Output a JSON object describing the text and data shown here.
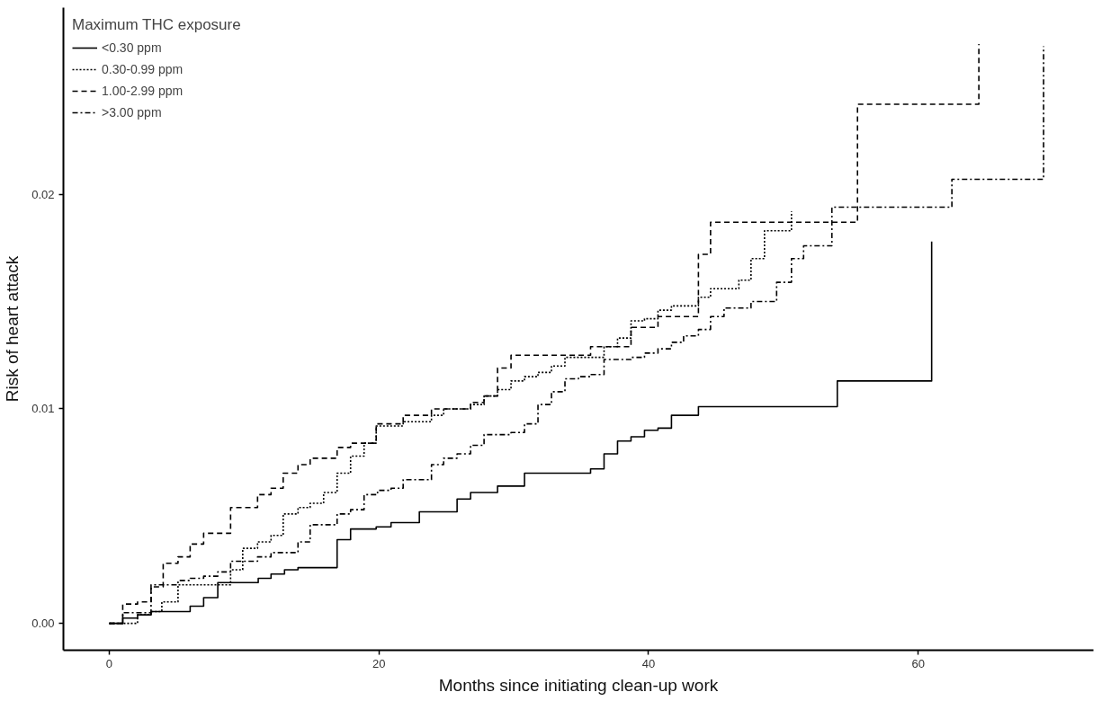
{
  "chart_data": {
    "type": "step",
    "xlabel": "Months since initiating clean-up work",
    "ylabel": "Risk of heart attack",
    "legend_title": "Maximum THC exposure",
    "legend": "top left",
    "grid": false,
    "xlim": [
      -3.4,
      73
    ],
    "ylim": [
      -0.00125,
      0.0287
    ],
    "xticks": [
      0,
      20,
      40,
      60
    ],
    "yticks": [
      {
        "value": 0,
        "label": "0.00"
      },
      {
        "value": 0.01,
        "label": "0.01"
      },
      {
        "value": 0.02,
        "label": "0.02"
      }
    ],
    "series": [
      {
        "name": "<0.30 ppm",
        "color": "#000000",
        "line_style": "solid",
        "x": [
          0,
          1,
          2.1,
          3.1,
          6,
          7,
          8.05,
          11.05,
          12,
          13,
          14,
          16.9,
          17.9,
          19.8,
          20.9,
          23,
          25.8,
          26.8,
          28.8,
          30.8,
          35.7,
          36.7,
          37.7,
          38.7,
          39.7,
          40.7,
          41.7,
          43.7,
          54,
          61,
          61
        ],
        "values": [
          0,
          0.00025,
          0.0004,
          0.00055,
          0.0008,
          0.0012,
          0.0019,
          0.0021,
          0.0023,
          0.0025,
          0.0026,
          0.0039,
          0.0044,
          0.0045,
          0.0047,
          0.0052,
          0.0058,
          0.0061,
          0.0064,
          0.007,
          0.0072,
          0.0079,
          0.0085,
          0.0087,
          0.009,
          0.0091,
          0.0097,
          0.0101,
          0.0113,
          0.0178,
          0.0178
        ]
      },
      {
        "name": "0.30-0.99 ppm",
        "color": "#000000",
        "line_style": "dotted",
        "x": [
          0,
          2.1,
          3.1,
          3.9,
          5.1,
          9,
          9.9,
          11,
          12,
          12.9,
          14,
          14.9,
          15.9,
          16.9,
          17.9,
          18.9,
          19.8,
          21.8,
          23.9,
          24.8,
          26.8,
          27.8,
          28.8,
          29.8,
          30.8,
          31.8,
          32.8,
          33.8,
          36.7,
          37.7,
          38.7,
          39.7,
          40.7,
          41.7,
          43.7,
          44.6,
          46.7,
          47.6,
          48.6,
          50.6,
          50.6
        ],
        "values": [
          0,
          0.0004,
          0.00055,
          0.001,
          0.0018,
          0.0025,
          0.0035,
          0.0038,
          0.0041,
          0.0051,
          0.0054,
          0.0056,
          0.0061,
          0.007,
          0.0078,
          0.0084,
          0.0092,
          0.0094,
          0.0097,
          0.01,
          0.0102,
          0.0106,
          0.0109,
          0.0113,
          0.0115,
          0.0117,
          0.012,
          0.0124,
          0.0129,
          0.0133,
          0.0141,
          0.0142,
          0.0146,
          0.0148,
          0.0152,
          0.0156,
          0.016,
          0.017,
          0.0183,
          0.0192,
          0.0192
        ]
      },
      {
        "name": "1.00-2.99 ppm",
        "color": "#000000",
        "line_style": "dashed",
        "x": [
          0,
          1,
          2.1,
          3.1,
          4,
          5.1,
          6,
          7,
          9,
          11,
          12,
          12.9,
          14,
          14.9,
          16.9,
          17.9,
          19.8,
          21.8,
          23.9,
          26.8,
          27.8,
          28.8,
          29.8,
          35.7,
          36.7,
          38.7,
          40.7,
          43.7,
          44.6,
          55.5,
          64.5,
          64.5
        ],
        "values": [
          0,
          0.0009,
          0.001,
          0.0017,
          0.0028,
          0.0031,
          0.0037,
          0.0042,
          0.0054,
          0.006,
          0.0063,
          0.007,
          0.0074,
          0.0077,
          0.0082,
          0.0084,
          0.0093,
          0.0097,
          0.01,
          0.0103,
          0.0106,
          0.0119,
          0.0125,
          0.0129,
          0.0129,
          0.0138,
          0.0143,
          0.0172,
          0.0187,
          0.0242,
          0.027,
          0.027
        ]
      },
      {
        "name": ">3.00 ppm",
        "color": "#000000",
        "line_style": "dashdot",
        "x": [
          0,
          1,
          3.1,
          5.1,
          6,
          7,
          8.05,
          9,
          11,
          12,
          14,
          14.9,
          16.9,
          17.9,
          18.9,
          19.9,
          20.9,
          21.8,
          23.9,
          24.8,
          25.8,
          26.8,
          27.8,
          29.8,
          30.8,
          31.8,
          32.8,
          33.8,
          34.8,
          35.7,
          36.7,
          38.7,
          39.7,
          40.7,
          41.7,
          42.6,
          43.7,
          44.6,
          45.6,
          47.6,
          49.5,
          50.6,
          51.5,
          53.6,
          62.5,
          69.3,
          69.3
        ],
        "values": [
          0,
          0.0005,
          0.0018,
          0.002,
          0.0021,
          0.0022,
          0.0024,
          0.0029,
          0.0031,
          0.0033,
          0.0038,
          0.0046,
          0.0051,
          0.0053,
          0.006,
          0.0062,
          0.0063,
          0.0067,
          0.0074,
          0.0077,
          0.0079,
          0.0083,
          0.0088,
          0.0089,
          0.0093,
          0.0102,
          0.0108,
          0.0114,
          0.0115,
          0.0116,
          0.0123,
          0.0124,
          0.0126,
          0.0128,
          0.0131,
          0.0134,
          0.0137,
          0.0143,
          0.0147,
          0.015,
          0.0159,
          0.017,
          0.0176,
          0.0194,
          0.0207,
          0.0269,
          0.0269
        ]
      }
    ]
  }
}
